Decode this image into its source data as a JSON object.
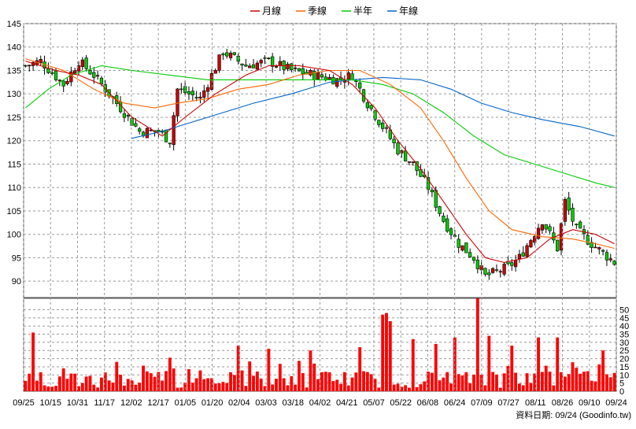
{
  "chart_data": [
    {
      "type": "candlestick",
      "legend": [
        {
          "label": "月線",
          "color": "#cc0000"
        },
        {
          "label": "季線",
          "color": "#ff6600"
        },
        {
          "label": "半年",
          "color": "#00cc00"
        },
        {
          "label": "年線",
          "color": "#0066cc"
        }
      ],
      "legend_position": "top-center",
      "y_ticks": [
        145,
        140,
        135,
        130,
        125,
        120,
        115,
        110,
        105,
        100,
        95,
        90
      ],
      "ylim": [
        86.5,
        145
      ],
      "x_ticks": [
        "09/25",
        "10/15",
        "10/31",
        "11/17",
        "12/02",
        "12/17",
        "01/05",
        "01/20",
        "02/04",
        "03/03",
        "03/18",
        "04/02",
        "04/21",
        "05/07",
        "05/22",
        "06/08",
        "06/24",
        "07/09",
        "07/27",
        "08/11",
        "08/26",
        "09/10",
        "09/24"
      ],
      "grid": true,
      "up_color": "#cc0000",
      "down_color": "#00cc00",
      "price_anchors": [
        {
          "x": 0,
          "y": 136
        },
        {
          "x": 4,
          "y": 137
        },
        {
          "x": 10,
          "y": 132
        },
        {
          "x": 14,
          "y": 137
        },
        {
          "x": 18,
          "y": 134
        },
        {
          "x": 24,
          "y": 128
        },
        {
          "x": 30,
          "y": 122
        },
        {
          "x": 35,
          "y": 122
        },
        {
          "x": 38,
          "y": 120
        },
        {
          "x": 40,
          "y": 131
        },
        {
          "x": 46,
          "y": 129
        },
        {
          "x": 52,
          "y": 139
        },
        {
          "x": 58,
          "y": 136
        },
        {
          "x": 64,
          "y": 137
        },
        {
          "x": 70,
          "y": 135
        },
        {
          "x": 76,
          "y": 134
        },
        {
          "x": 82,
          "y": 133
        },
        {
          "x": 86,
          "y": 134
        },
        {
          "x": 90,
          "y": 128
        },
        {
          "x": 94,
          "y": 123
        },
        {
          "x": 98,
          "y": 118
        },
        {
          "x": 102,
          "y": 115
        },
        {
          "x": 106,
          "y": 110
        },
        {
          "x": 110,
          "y": 103
        },
        {
          "x": 114,
          "y": 98
        },
        {
          "x": 118,
          "y": 95
        },
        {
          "x": 121,
          "y": 91
        },
        {
          "x": 124,
          "y": 92
        },
        {
          "x": 127,
          "y": 93
        },
        {
          "x": 130,
          "y": 95
        },
        {
          "x": 133,
          "y": 99
        },
        {
          "x": 136,
          "y": 103
        },
        {
          "x": 140,
          "y": 97
        },
        {
          "x": 142,
          "y": 107
        },
        {
          "x": 145,
          "y": 101
        },
        {
          "x": 149,
          "y": 98
        },
        {
          "x": 152,
          "y": 96
        },
        {
          "x": 155,
          "y": 94
        }
      ],
      "ma_month": [
        [
          0,
          137
        ],
        [
          8,
          135
        ],
        [
          14,
          134
        ],
        [
          20,
          132
        ],
        [
          28,
          125
        ],
        [
          36,
          121
        ],
        [
          42,
          125
        ],
        [
          50,
          130
        ],
        [
          58,
          134
        ],
        [
          64,
          136
        ],
        [
          72,
          136
        ],
        [
          80,
          135
        ],
        [
          86,
          132
        ],
        [
          92,
          127
        ],
        [
          98,
          120
        ],
        [
          104,
          114
        ],
        [
          110,
          107
        ],
        [
          116,
          100
        ],
        [
          121,
          95
        ],
        [
          126,
          94
        ],
        [
          132,
          95
        ],
        [
          138,
          99
        ],
        [
          144,
          101
        ],
        [
          150,
          100
        ],
        [
          155,
          98
        ]
      ],
      "ma_quarter": [
        [
          0,
          137.5
        ],
        [
          10,
          135
        ],
        [
          18,
          131
        ],
        [
          26,
          128
        ],
        [
          34,
          127
        ],
        [
          40,
          128
        ],
        [
          48,
          129
        ],
        [
          56,
          131
        ],
        [
          64,
          132
        ],
        [
          72,
          134
        ],
        [
          80,
          135
        ],
        [
          88,
          135
        ],
        [
          96,
          132
        ],
        [
          104,
          127
        ],
        [
          110,
          120
        ],
        [
          116,
          112
        ],
        [
          122,
          105
        ],
        [
          128,
          101
        ],
        [
          136,
          99.5
        ],
        [
          144,
          99
        ],
        [
          150,
          98
        ],
        [
          155,
          97
        ]
      ],
      "ma_halfyear": [
        [
          0,
          127
        ],
        [
          6,
          131
        ],
        [
          12,
          134
        ],
        [
          20,
          136
        ],
        [
          28,
          135
        ],
        [
          38,
          134
        ],
        [
          48,
          133
        ],
        [
          58,
          133
        ],
        [
          68,
          133
        ],
        [
          78,
          133
        ],
        [
          86,
          133
        ],
        [
          94,
          132
        ],
        [
          102,
          130
        ],
        [
          110,
          126
        ],
        [
          118,
          121
        ],
        [
          126,
          117
        ],
        [
          134,
          115
        ],
        [
          142,
          113
        ],
        [
          150,
          111
        ],
        [
          155,
          110
        ]
      ],
      "ma_year": [
        [
          28,
          120.5
        ],
        [
          36,
          122
        ],
        [
          44,
          124
        ],
        [
          52,
          126
        ],
        [
          60,
          128
        ],
        [
          70,
          130
        ],
        [
          80,
          132.5
        ],
        [
          86,
          133
        ],
        [
          94,
          133.5
        ],
        [
          104,
          133
        ],
        [
          112,
          131
        ],
        [
          120,
          128
        ],
        [
          128,
          126
        ],
        [
          136,
          124.5
        ],
        [
          146,
          123
        ],
        [
          155,
          121
        ]
      ]
    },
    {
      "type": "bar",
      "y_ticks": [
        50,
        45,
        40,
        35,
        30,
        25,
        20,
        15,
        10,
        5,
        0
      ],
      "ylim": [
        0,
        57
      ],
      "bar_color": "#ff0000"
    }
  ],
  "footer_note": "資料日期: 09/24  (Goodinfo.tw)"
}
